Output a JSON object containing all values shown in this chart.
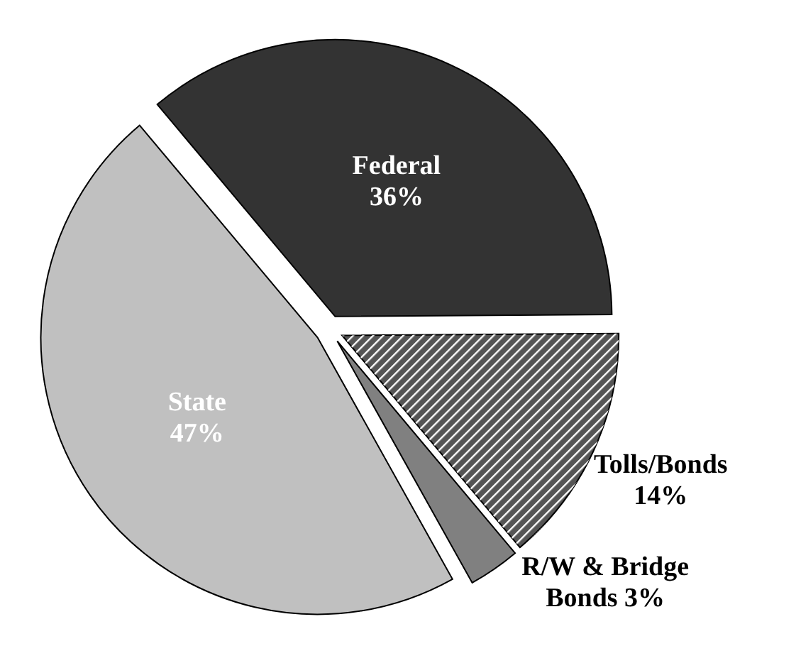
{
  "chart_data": {
    "type": "pie",
    "categories": [
      "Federal",
      "Tolls/Bonds",
      "R/W & Bridge Bonds",
      "State"
    ],
    "values": [
      36,
      14,
      3,
      47
    ],
    "value_labels": [
      "36%",
      "14%",
      "3%",
      "47%"
    ],
    "colors": [
      "#333333",
      "#555555",
      "#808080",
      "#c0c0c0"
    ]
  }
}
